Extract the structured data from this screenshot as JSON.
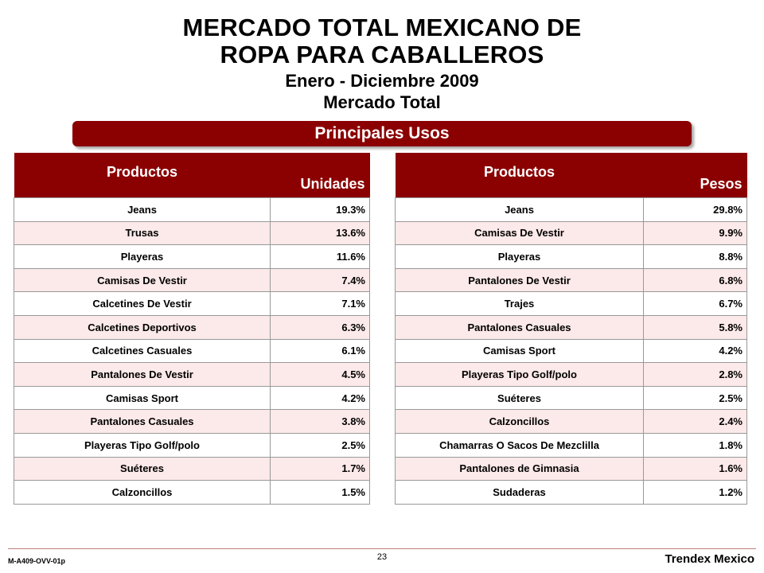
{
  "header": {
    "title_line1": "MERCADO TOTAL MEXICANO DE",
    "title_line2": "ROPA PARA CABALLEROS",
    "period": "Enero - Diciembre 2009",
    "scope": "Mercado Total"
  },
  "banner": {
    "label": "Principales Usos"
  },
  "left_table": {
    "header_product": "Productos",
    "header_value": "Unidades",
    "rows": [
      {
        "product": "Jeans",
        "value": "19.3%"
      },
      {
        "product": "Trusas",
        "value": "13.6%"
      },
      {
        "product": "Playeras",
        "value": "11.6%"
      },
      {
        "product": "Camisas De Vestir",
        "value": "7.4%"
      },
      {
        "product": "Calcetines De Vestir",
        "value": "7.1%"
      },
      {
        "product": "Calcetines Deportivos",
        "value": "6.3%"
      },
      {
        "product": "Calcetines Casuales",
        "value": "6.1%"
      },
      {
        "product": "Pantalones De Vestir",
        "value": "4.5%"
      },
      {
        "product": "Camisas Sport",
        "value": "4.2%"
      },
      {
        "product": "Pantalones Casuales",
        "value": "3.8%"
      },
      {
        "product": "Playeras Tipo Golf/polo",
        "value": "2.5%"
      },
      {
        "product": "Suéteres",
        "value": "1.7%"
      },
      {
        "product": "Calzoncillos",
        "value": "1.5%"
      }
    ]
  },
  "right_table": {
    "header_product": "Productos",
    "header_value": "Pesos",
    "rows": [
      {
        "product": "Jeans",
        "value": "29.8%"
      },
      {
        "product": "Camisas De Vestir",
        "value": "9.9%"
      },
      {
        "product": "Playeras",
        "value": "8.8%"
      },
      {
        "product": "Pantalones De Vestir",
        "value": "6.8%"
      },
      {
        "product": "Trajes",
        "value": "6.7%"
      },
      {
        "product": "Pantalones Casuales",
        "value": "5.8%"
      },
      {
        "product": "Camisas Sport",
        "value": "4.2%"
      },
      {
        "product": "Playeras Tipo Golf/polo",
        "value": "2.8%"
      },
      {
        "product": "Suéteres",
        "value": "2.5%"
      },
      {
        "product": "Calzoncillos",
        "value": "2.4%"
      },
      {
        "product": "Chamarras O Sacos De Mezclilla",
        "value": "1.8%"
      },
      {
        "product": "Pantalones de Gimnasia",
        "value": "1.6%"
      },
      {
        "product": "Sudaderas",
        "value": "1.2%"
      }
    ]
  },
  "footer": {
    "code": "M-A409-OVV-01p",
    "page_number": "23",
    "brand": "Trendex Mexico"
  },
  "colors": {
    "header_red": "#8b0000",
    "row_tint": "#fce9e9"
  }
}
